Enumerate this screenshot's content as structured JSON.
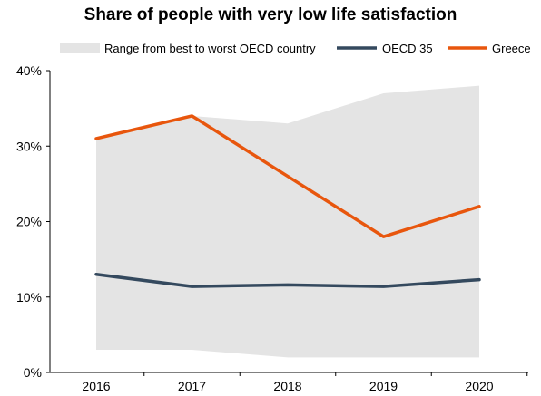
{
  "chart_data": {
    "type": "line",
    "title": "Share of people with very low life satisfaction",
    "x": [
      "2016",
      "2017",
      "2018",
      "2019",
      "2020"
    ],
    "ylim": [
      0,
      40
    ],
    "yticks": [
      0,
      10,
      20,
      30,
      40
    ],
    "ytick_labels": [
      "0%",
      "10%",
      "20%",
      "30%",
      "40%"
    ],
    "grid": false,
    "legend_position": "top",
    "range_band": {
      "name": "Range from best to worst OECD country",
      "color": "#e4e4e4",
      "upper": [
        31,
        34,
        33,
        37,
        38
      ],
      "lower": [
        3,
        3,
        2,
        2,
        2
      ]
    },
    "series": [
      {
        "name": "OECD 35",
        "color": "#34495e",
        "values": [
          13,
          11.4,
          11.6,
          11.4,
          12.3
        ]
      },
      {
        "name": "Greece",
        "color": "#e8560d",
        "values": [
          31,
          34,
          26,
          18,
          22
        ]
      }
    ]
  }
}
